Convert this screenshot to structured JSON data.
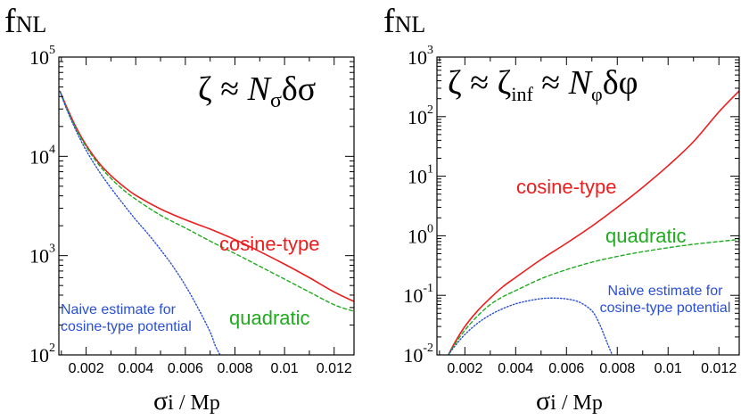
{
  "chart_data": [
    {
      "type": "line",
      "panel": "left",
      "ylabel_main": "f",
      "ylabel_sub": "NL",
      "xlabel_main": "σ",
      "xlabel_rest": "i / Mp",
      "xlim": [
        0.0009,
        0.0128
      ],
      "ylim_log10": [
        2,
        5
      ],
      "x_ticks": [
        0.002,
        0.004,
        0.006,
        0.008,
        0.01,
        0.012
      ],
      "x_tick_labels": [
        "0.002",
        "0.004",
        "0.006",
        "0.008",
        "0.01",
        "0.012"
      ],
      "y_ticks": [
        {
          "base": "10",
          "exp": "2",
          "log10": 2
        },
        {
          "base": "10",
          "exp": "3",
          "log10": 3
        },
        {
          "base": "10",
          "exp": "4",
          "log10": 4
        },
        {
          "base": "10",
          "exp": "5",
          "log10": 5
        }
      ],
      "formula": {
        "a": "ζ ≈ ",
        "b": "N",
        "b_sub": "σ",
        "c": "δσ"
      },
      "series": [
        {
          "name": "cosine-type",
          "color": "#ee1c1c",
          "dash": "",
          "x": [
            0.00095,
            0.0012,
            0.0016,
            0.002,
            0.0025,
            0.003,
            0.0035,
            0.004,
            0.005,
            0.006,
            0.007,
            0.008,
            0.009,
            0.01,
            0.011,
            0.012,
            0.0128
          ],
          "y": [
            45000,
            32000,
            19500,
            13000,
            8700,
            6400,
            5000,
            4050,
            2950,
            2300,
            1850,
            1450,
            1100,
            820,
            600,
            430,
            345
          ]
        },
        {
          "name": "quadratic",
          "color": "#1faa1f",
          "dash": "4,3",
          "x": [
            0.00095,
            0.0012,
            0.0016,
            0.002,
            0.0025,
            0.003,
            0.0035,
            0.004,
            0.005,
            0.006,
            0.007,
            0.008,
            0.009,
            0.01,
            0.011,
            0.012,
            0.0128
          ],
          "y": [
            45000,
            31000,
            18800,
            12500,
            8300,
            6000,
            4600,
            3700,
            2550,
            1900,
            1400,
            1050,
            780,
            580,
            430,
            320,
            275
          ]
        },
        {
          "name": "Naive estimate for cosine-type potential",
          "color": "#2a4fd6",
          "dash": "1.4,2.2",
          "x": [
            0.00095,
            0.0012,
            0.0016,
            0.002,
            0.0025,
            0.003,
            0.0035,
            0.004,
            0.0045,
            0.005,
            0.0055,
            0.006,
            0.0065,
            0.007,
            0.0072,
            0.0074
          ],
          "y": [
            45000,
            30500,
            18000,
            11500,
            7200,
            4800,
            3300,
            2300,
            1650,
            1150,
            780,
            500,
            300,
            170,
            125,
            100
          ]
        }
      ],
      "annotations": [
        {
          "key": "cos",
          "lines": [
            "cosine-type"
          ],
          "color": "#ee1c1c"
        },
        {
          "key": "quad",
          "lines": [
            "quadratic"
          ],
          "color": "#1faa1f"
        },
        {
          "key": "naive",
          "lines": [
            "Naive estimate for",
            "cosine-type potential"
          ],
          "color": "#2a4fd6"
        }
      ]
    },
    {
      "type": "line",
      "panel": "right",
      "ylabel_main": "f",
      "ylabel_sub": "NL",
      "xlabel_main": "σ",
      "xlabel_rest": "i / Mp",
      "xlim": [
        0.0009,
        0.0128
      ],
      "ylim_log10": [
        -2,
        3
      ],
      "x_ticks": [
        0.002,
        0.004,
        0.006,
        0.008,
        0.01,
        0.012
      ],
      "x_tick_labels": [
        "0.002",
        "0.004",
        "0.006",
        "0.008",
        "0.01",
        "0.012"
      ],
      "y_ticks": [
        {
          "base": "10",
          "exp": "-2",
          "log10": -2
        },
        {
          "base": "10",
          "exp": "-1",
          "log10": -1
        },
        {
          "base": "10",
          "exp": "0",
          "log10": 0
        },
        {
          "base": "10",
          "exp": "1",
          "log10": 1
        },
        {
          "base": "10",
          "exp": "2",
          "log10": 2
        },
        {
          "base": "10",
          "exp": "3",
          "log10": 3
        }
      ],
      "formula": {
        "a": "ζ ≈ ζ",
        "a_sub": "inf",
        "b": " ≈ ",
        "c": "N",
        "c_sub": "φ",
        "d": "δφ"
      },
      "series": [
        {
          "name": "cosine-type",
          "color": "#ee1c1c",
          "dash": "",
          "x": [
            0.00135,
            0.0016,
            0.002,
            0.0025,
            0.003,
            0.0035,
            0.004,
            0.005,
            0.006,
            0.007,
            0.008,
            0.009,
            0.01,
            0.011,
            0.012,
            0.0128
          ],
          "y": [
            0.01,
            0.016,
            0.03,
            0.055,
            0.09,
            0.14,
            0.2,
            0.4,
            0.75,
            1.45,
            3.0,
            6.5,
            15,
            38,
            120,
            270
          ]
        },
        {
          "name": "quadratic",
          "color": "#1faa1f",
          "dash": "4,3",
          "x": [
            0.00135,
            0.0016,
            0.002,
            0.0025,
            0.003,
            0.0035,
            0.004,
            0.005,
            0.006,
            0.007,
            0.008,
            0.009,
            0.01,
            0.011,
            0.012,
            0.0128
          ],
          "y": [
            0.01,
            0.015,
            0.026,
            0.045,
            0.07,
            0.095,
            0.12,
            0.19,
            0.27,
            0.36,
            0.45,
            0.54,
            0.63,
            0.72,
            0.8,
            0.87
          ]
        },
        {
          "name": "Naive estimate for cosine-type potential",
          "color": "#2a4fd6",
          "dash": "1.4,2.2",
          "x": [
            0.00135,
            0.0016,
            0.002,
            0.0025,
            0.003,
            0.0035,
            0.004,
            0.0045,
            0.005,
            0.0055,
            0.006,
            0.0065,
            0.007,
            0.0073,
            0.0076,
            0.0078
          ],
          "y": [
            0.01,
            0.014,
            0.022,
            0.034,
            0.047,
            0.06,
            0.072,
            0.081,
            0.088,
            0.09,
            0.087,
            0.077,
            0.055,
            0.033,
            0.016,
            0.01
          ]
        }
      ],
      "annotations": [
        {
          "key": "cos",
          "lines": [
            "cosine-type"
          ],
          "color": "#ee1c1c"
        },
        {
          "key": "quad",
          "lines": [
            "quadratic"
          ],
          "color": "#1faa1f"
        },
        {
          "key": "naive",
          "lines": [
            "Naive estimate for",
            "cosine-type potential"
          ],
          "color": "#2a4fd6"
        }
      ]
    }
  ]
}
